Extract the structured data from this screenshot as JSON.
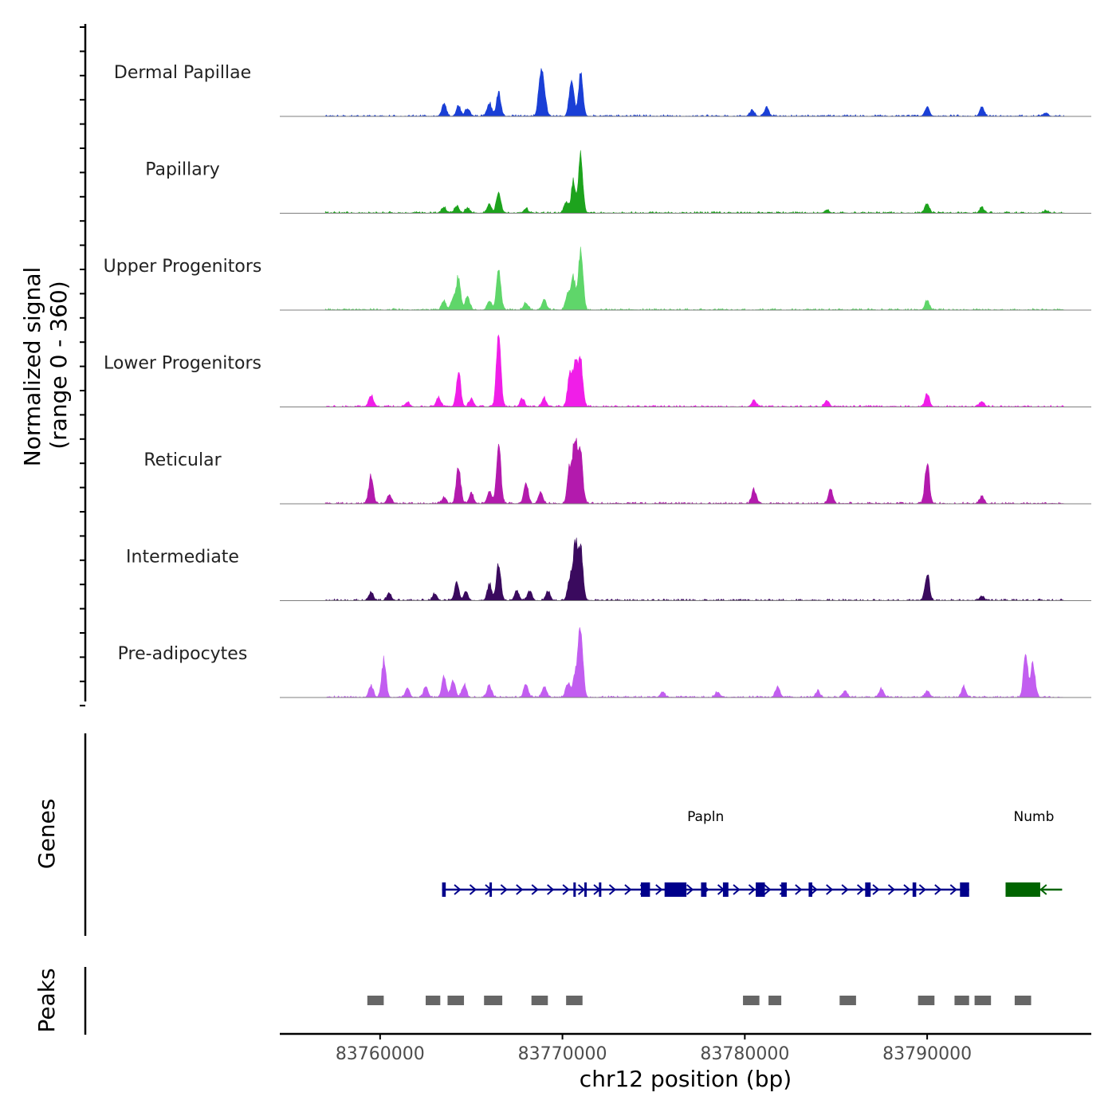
{
  "chart_data": {
    "type": "area",
    "title": "",
    "ylabel_line1": "Normalized signal",
    "ylabel_line2": "(range 0 - 360)",
    "ylim": [
      0,
      360
    ],
    "xlabel": "chr12 position (bp)",
    "xlim": [
      83754500,
      83799000
    ],
    "xticks": [
      83760000,
      83770000,
      83780000,
      83790000
    ],
    "xtick_labels": [
      "83760000",
      "83770000",
      "83780000",
      "83790000"
    ],
    "signal_range": [
      83757000,
      83797500
    ],
    "series": [
      {
        "name": "Dermal Papillae",
        "color": "#1a3fd6",
        "peaks": [
          [
            83763500,
            55
          ],
          [
            83764300,
            45
          ],
          [
            83764800,
            35
          ],
          [
            83766000,
            60
          ],
          [
            83766500,
            110
          ],
          [
            83768800,
            190
          ],
          [
            83769000,
            90
          ],
          [
            83770500,
            190
          ],
          [
            83771000,
            190
          ],
          [
            83780400,
            30
          ],
          [
            83781200,
            40
          ],
          [
            83790000,
            40
          ],
          [
            83793000,
            40
          ],
          [
            83796500,
            15
          ]
        ]
      },
      {
        "name": "Papillary",
        "color": "#1da31d",
        "peaks": [
          [
            83763500,
            25
          ],
          [
            83764200,
            35
          ],
          [
            83764800,
            25
          ],
          [
            83766000,
            40
          ],
          [
            83766500,
            95
          ],
          [
            83768000,
            20
          ],
          [
            83770200,
            50
          ],
          [
            83770600,
            150
          ],
          [
            83771000,
            270
          ],
          [
            83784500,
            15
          ],
          [
            83790000,
            45
          ],
          [
            83793000,
            25
          ],
          [
            83796500,
            10
          ]
        ]
      },
      {
        "name": "Upper Progenitors",
        "color": "#5fd66a",
        "peaks": [
          [
            83763500,
            40
          ],
          [
            83764000,
            55
          ],
          [
            83764300,
            150
          ],
          [
            83764800,
            60
          ],
          [
            83766000,
            40
          ],
          [
            83766500,
            200
          ],
          [
            83768000,
            35
          ],
          [
            83769000,
            45
          ],
          [
            83770300,
            80
          ],
          [
            83770600,
            150
          ],
          [
            83771000,
            300
          ],
          [
            83790000,
            45
          ]
        ]
      },
      {
        "name": "Lower Progenitors",
        "color": "#f01ee8",
        "peaks": [
          [
            83759500,
            55
          ],
          [
            83761500,
            20
          ],
          [
            83763200,
            45
          ],
          [
            83764300,
            160
          ],
          [
            83765000,
            40
          ],
          [
            83766500,
            340
          ],
          [
            83767800,
            40
          ],
          [
            83769000,
            40
          ],
          [
            83770400,
            150
          ],
          [
            83770700,
            210
          ],
          [
            83771000,
            210
          ],
          [
            83780500,
            30
          ],
          [
            83784500,
            30
          ],
          [
            83790000,
            60
          ],
          [
            83793000,
            25
          ]
        ]
      },
      {
        "name": "Reticular",
        "color": "#b31aad",
        "peaks": [
          [
            83759500,
            130
          ],
          [
            83760500,
            40
          ],
          [
            83763500,
            30
          ],
          [
            83764300,
            170
          ],
          [
            83765000,
            50
          ],
          [
            83766000,
            60
          ],
          [
            83766500,
            280
          ],
          [
            83768000,
            90
          ],
          [
            83768800,
            50
          ],
          [
            83770400,
            170
          ],
          [
            83770700,
            300
          ],
          [
            83771000,
            230
          ],
          [
            83780500,
            70
          ],
          [
            83784700,
            70
          ],
          [
            83790000,
            190
          ],
          [
            83793000,
            35
          ]
        ]
      },
      {
        "name": "Intermediate",
        "color": "#3a0a5e",
        "peaks": [
          [
            83759500,
            40
          ],
          [
            83760500,
            35
          ],
          [
            83763000,
            30
          ],
          [
            83764200,
            80
          ],
          [
            83764700,
            40
          ],
          [
            83766000,
            80
          ],
          [
            83766500,
            180
          ],
          [
            83767500,
            45
          ],
          [
            83768200,
            45
          ],
          [
            83769200,
            45
          ],
          [
            83770400,
            100
          ],
          [
            83770700,
            270
          ],
          [
            83771000,
            250
          ],
          [
            83790000,
            130
          ],
          [
            83793000,
            20
          ]
        ]
      },
      {
        "name": "Pre-adipocytes",
        "color": "#c25ef0",
        "peaks": [
          [
            83759500,
            55
          ],
          [
            83760200,
            170
          ],
          [
            83761500,
            40
          ],
          [
            83762500,
            50
          ],
          [
            83763500,
            95
          ],
          [
            83764000,
            80
          ],
          [
            83764600,
            60
          ],
          [
            83766000,
            55
          ],
          [
            83768000,
            60
          ],
          [
            83769000,
            55
          ],
          [
            83770300,
            65
          ],
          [
            83770700,
            120
          ],
          [
            83771000,
            350
          ],
          [
            83775500,
            25
          ],
          [
            83778500,
            25
          ],
          [
            83781800,
            50
          ],
          [
            83784000,
            30
          ],
          [
            83785500,
            30
          ],
          [
            83787500,
            40
          ],
          [
            83790000,
            30
          ],
          [
            83792000,
            50
          ],
          [
            83795400,
            200
          ],
          [
            83795800,
            160
          ]
        ]
      }
    ],
    "genes": [
      {
        "name": "Papln",
        "strand": "+",
        "color": "#00008b",
        "start": 83763400,
        "end": 83792300,
        "exons": [
          [
            83763400,
            83763600
          ],
          [
            83766000,
            83766100
          ],
          [
            83770600,
            83770700
          ],
          [
            83771200,
            83771300
          ],
          [
            83772000,
            83772100
          ],
          [
            83774300,
            83774800
          ],
          [
            83775600,
            83776800
          ],
          [
            83777600,
            83777900
          ],
          [
            83778800,
            83779100
          ],
          [
            83780600,
            83781100
          ],
          [
            83782000,
            83782300
          ],
          [
            83783500,
            83783700
          ],
          [
            83786600,
            83786900
          ],
          [
            83789200,
            83789400
          ],
          [
            83791800,
            83792300
          ]
        ]
      },
      {
        "name": "Numb",
        "strand": "-",
        "color": "#006400",
        "start": 83794300,
        "end": 83797400,
        "exons": [
          [
            83794300,
            83796200
          ]
        ]
      }
    ],
    "peaks_track": {
      "label": "Peaks",
      "color": "#666666",
      "regions": [
        [
          83759300,
          83760200
        ],
        [
          83762500,
          83763300
        ],
        [
          83763700,
          83764600
        ],
        [
          83765700,
          83766700
        ],
        [
          83768300,
          83769200
        ],
        [
          83770200,
          83771100
        ],
        [
          83779900,
          83780800
        ],
        [
          83781300,
          83782000
        ],
        [
          83785200,
          83786100
        ],
        [
          83789500,
          83790400
        ],
        [
          83791500,
          83792300
        ],
        [
          83792600,
          83793500
        ],
        [
          83794800,
          83795700
        ]
      ]
    },
    "genes_track_label": "Genes"
  }
}
